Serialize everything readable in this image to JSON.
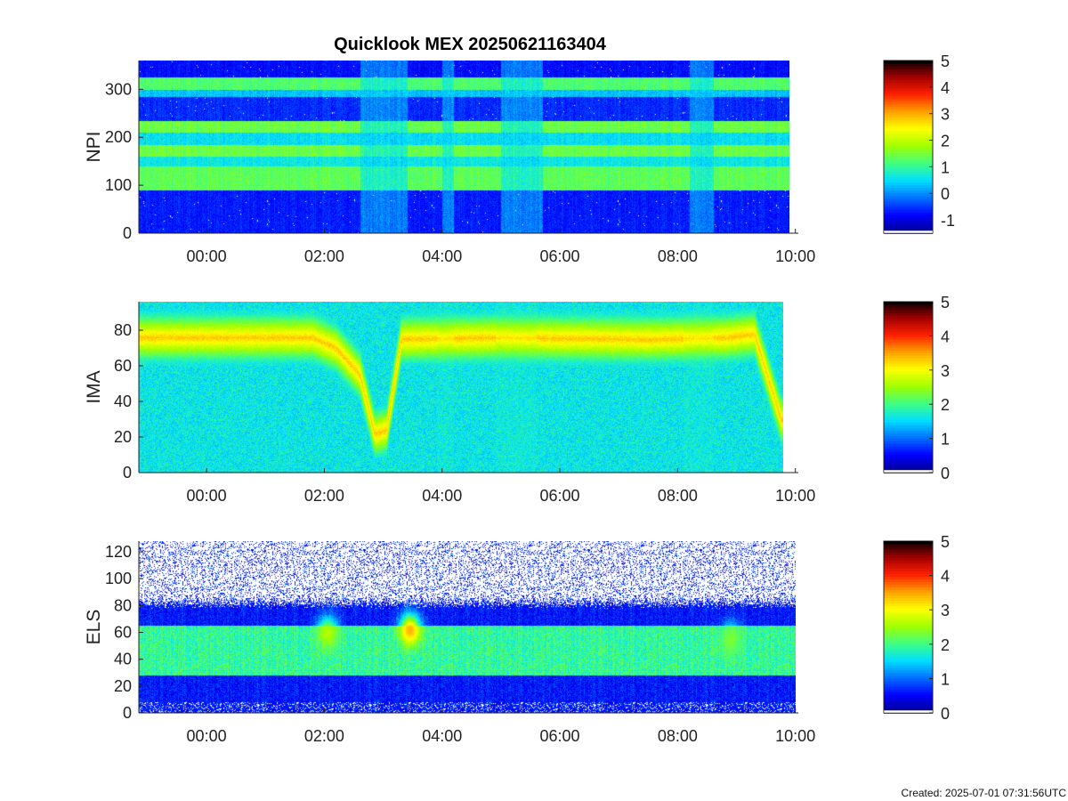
{
  "chart_data": {
    "type": "heatmap",
    "title": "Quicklook MEX 20250621163404",
    "footer": "Created: 2025-07-01 07:31:56UTC",
    "x_tick_labels": [
      "00:00",
      "02:00",
      "04:00",
      "06:00",
      "08:00",
      "10:00"
    ],
    "x_tick_hours": [
      0,
      2,
      4,
      6,
      8,
      10
    ],
    "xlim_hours": [
      -1.15,
      10.05
    ],
    "colormap": [
      "#00008f",
      "#0000ff",
      "#0070ff",
      "#00dfff",
      "#40ff80",
      "#a0ff00",
      "#ffff00",
      "#ffa000",
      "#ff2000",
      "#a00000",
      "#000000"
    ],
    "panels": [
      {
        "ylabel": "NPI",
        "ylim": [
          0,
          360
        ],
        "yticks": [
          0,
          100,
          200,
          300
        ],
        "ytick_labels": [
          "0",
          "100",
          "200",
          "300"
        ],
        "clim": [
          -1.5,
          5
        ],
        "colorbar_ticks": [
          -1,
          0,
          1,
          2,
          3,
          4,
          5
        ],
        "colorbar_labels": [
          "-1",
          "0",
          "1",
          "2",
          "3",
          "4",
          "5"
        ],
        "data_end_hours": 9.9,
        "bands": [
          {
            "y": [
              0,
              90
            ],
            "value": -0.7
          },
          {
            "y": [
              90,
              140
            ],
            "value": 1.3
          },
          {
            "y": [
              140,
              160
            ],
            "value": 0.6
          },
          {
            "y": [
              160,
              185
            ],
            "value": 1.4
          },
          {
            "y": [
              185,
              210
            ],
            "value": 0.5
          },
          {
            "y": [
              210,
              235
            ],
            "value": 1.4
          },
          {
            "y": [
              235,
              285
            ],
            "value": -0.6
          },
          {
            "y": [
              285,
              300
            ],
            "value": 0.3
          },
          {
            "y": [
              300,
              325
            ],
            "value": 1.2
          },
          {
            "y": [
              325,
              360
            ],
            "value": -0.8
          }
        ],
        "gaps_hours": [
          [
            2.6,
            3.4
          ],
          [
            4.0,
            4.2
          ],
          [
            5.0,
            5.7
          ],
          [
            8.2,
            8.6
          ]
        ]
      },
      {
        "ylabel": "IMA",
        "ylim": [
          0,
          96
        ],
        "yticks": [
          0,
          20,
          40,
          60,
          80
        ],
        "ytick_labels": [
          "0",
          "20",
          "40",
          "60",
          "80"
        ],
        "clim": [
          0,
          5
        ],
        "colorbar_ticks": [
          0,
          1,
          2,
          3,
          4,
          5
        ],
        "colorbar_labels": [
          "0",
          "1",
          "2",
          "3",
          "4",
          "5"
        ],
        "data_end_hours": 9.8,
        "background_value": 1.6,
        "peak_energy": [
          {
            "t": -1.15,
            "y": 76
          },
          {
            "t": 1.8,
            "y": 76
          },
          {
            "t": 2.2,
            "y": 70
          },
          {
            "t": 2.6,
            "y": 55
          },
          {
            "t": 2.85,
            "y": 22
          },
          {
            "t": 3.05,
            "y": 24
          },
          {
            "t": 3.3,
            "y": 75
          },
          {
            "t": 5.0,
            "y": 76
          },
          {
            "t": 7.5,
            "y": 75
          },
          {
            "t": 8.8,
            "y": 76
          },
          {
            "t": 9.3,
            "y": 78
          },
          {
            "t": 9.75,
            "y": 30
          }
        ],
        "peak_value": 3.3,
        "gaps_hours": [
          [
            3.9,
            4.2
          ],
          [
            4.9,
            5.6
          ],
          [
            8.1,
            8.6
          ]
        ]
      },
      {
        "ylabel": "ELS",
        "ylim": [
          0,
          128
        ],
        "yticks": [
          0,
          20,
          40,
          60,
          80,
          100,
          120
        ],
        "ytick_labels": [
          "0",
          "20",
          "40",
          "60",
          "80",
          "100",
          "120"
        ],
        "clim": [
          0,
          5
        ],
        "colorbar_ticks": [
          0,
          1,
          2,
          3,
          4,
          5
        ],
        "colorbar_labels": [
          "0",
          "1",
          "2",
          "3",
          "4",
          "5"
        ],
        "data_end_hours": 10.0,
        "core_range": [
          28,
          65
        ],
        "core_value": 1.9,
        "noise_above": 82,
        "bright_spots": [
          {
            "t": 2.05,
            "y": 60,
            "value": 2.6
          },
          {
            "t": 3.45,
            "y": 62,
            "value": 3.4
          },
          {
            "t": 8.9,
            "y": 55,
            "value": 2.3
          }
        ]
      }
    ]
  }
}
